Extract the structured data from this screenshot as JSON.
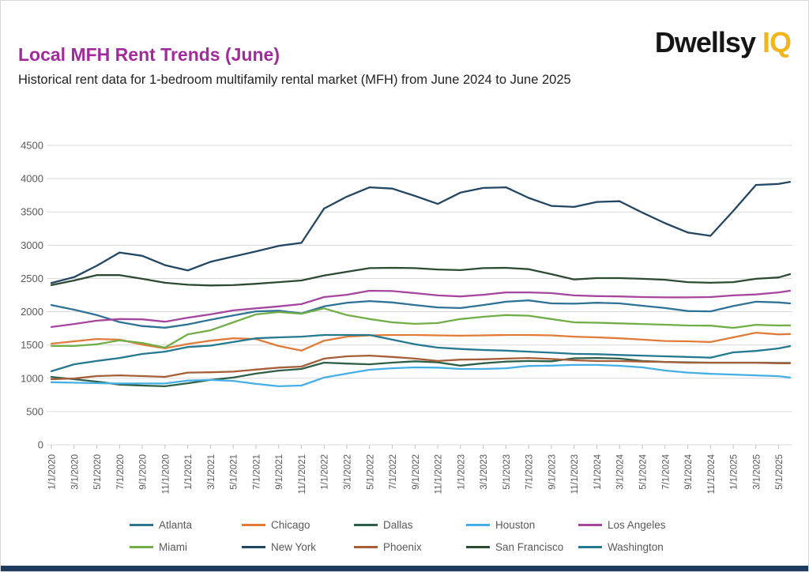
{
  "header": {
    "title": "Local MFH Rent Trends (June)",
    "title_color": "#A12B9B",
    "subtitle": "Historical rent data for 1-bedroom multifamily rental market (MFH) from June 2024 to June 2025",
    "logo": {
      "text_primary": "Dwellsy",
      "text_secondary": "IQ",
      "primary_color": "#161616",
      "secondary_color": "#F2B51D"
    }
  },
  "page": {
    "footer_bar_color": "#1E3A5E",
    "grid_color": "#D9D9D9",
    "axis_tick_color": "#BFBFBF",
    "axis_label_color": "#595959"
  },
  "chart_data": {
    "type": "line",
    "title": "Local MFH Rent Trends (June)",
    "xlabel": "",
    "ylabel": "",
    "ylim": [
      0,
      4500
    ],
    "y_ticks": [
      0,
      500,
      1000,
      1500,
      2000,
      2500,
      3000,
      3500,
      4000,
      4500
    ],
    "grid": true,
    "legend_position": "bottom",
    "x_tick_labels": [
      "1/1/2020",
      "3/1/2020",
      "5/1/2020",
      "7/1/2020",
      "9/1/2020",
      "11/1/2020",
      "1/1/2021",
      "3/1/2021",
      "5/1/2021",
      "7/1/2021",
      "9/1/2021",
      "11/1/2021",
      "1/1/2022",
      "3/1/2022",
      "5/1/2022",
      "7/1/2022",
      "9/1/2022",
      "11/1/2022",
      "1/1/2023",
      "3/1/2023",
      "5/1/2023",
      "7/1/2023",
      "9/1/2023",
      "11/1/2023",
      "1/1/2024",
      "3/1/2024",
      "5/1/2024",
      "7/1/2024",
      "9/1/2024",
      "11/1/2024",
      "1/1/2025",
      "3/1/2025",
      "5/1/2025"
    ],
    "x_months": [
      0,
      2,
      4,
      6,
      8,
      10,
      12,
      14,
      16,
      18,
      20,
      22,
      24,
      26,
      28,
      30,
      32,
      34,
      36,
      38,
      40,
      42,
      44,
      46,
      48,
      50,
      52,
      54,
      56,
      58,
      60,
      62,
      64,
      65
    ],
    "x_months_note": "months since 1/2020; final unlabeled point is 6/1/2025",
    "series": [
      {
        "name": "Atlanta",
        "color": "#2E7295",
        "values": [
          2100,
          2030,
          1950,
          1845,
          1785,
          1760,
          1810,
          1880,
          1945,
          2005,
          2015,
          1975,
          2080,
          2135,
          2160,
          2140,
          2100,
          2065,
          2055,
          2100,
          2150,
          2170,
          2125,
          2120,
          2135,
          2125,
          2090,
          2055,
          2010,
          2005,
          2085,
          2150,
          2140,
          2125
        ]
      },
      {
        "name": "Chicago",
        "color": "#E07B39",
        "values": [
          1520,
          1555,
          1590,
          1580,
          1505,
          1450,
          1515,
          1565,
          1600,
          1590,
          1485,
          1415,
          1565,
          1625,
          1645,
          1650,
          1650,
          1645,
          1640,
          1645,
          1650,
          1650,
          1645,
          1625,
          1615,
          1600,
          1580,
          1560,
          1555,
          1545,
          1615,
          1685,
          1660,
          1665
        ]
      },
      {
        "name": "Dallas",
        "color": "#2E6049",
        "values": [
          1020,
          985,
          950,
          905,
          890,
          880,
          925,
          975,
          1010,
          1070,
          1115,
          1140,
          1235,
          1220,
          1210,
          1235,
          1255,
          1240,
          1190,
          1225,
          1250,
          1260,
          1255,
          1300,
          1305,
          1295,
          1260,
          1245,
          1240,
          1235,
          1235,
          1235,
          1230,
          1230
        ]
      },
      {
        "name": "Houston",
        "color": "#45AFE5",
        "values": [
          940,
          933,
          926,
          921,
          921,
          921,
          965,
          975,
          960,
          915,
          880,
          890,
          1010,
          1070,
          1128,
          1150,
          1163,
          1160,
          1140,
          1140,
          1150,
          1185,
          1190,
          1200,
          1200,
          1187,
          1163,
          1116,
          1085,
          1068,
          1056,
          1044,
          1032,
          1010
        ]
      },
      {
        "name": "Los Angeles",
        "color": "#A5469E",
        "values": [
          1770,
          1815,
          1865,
          1890,
          1885,
          1850,
          1910,
          1960,
          2020,
          2050,
          2080,
          2115,
          2220,
          2255,
          2315,
          2310,
          2280,
          2245,
          2230,
          2255,
          2290,
          2290,
          2280,
          2245,
          2235,
          2230,
          2220,
          2215,
          2215,
          2220,
          2245,
          2260,
          2290,
          2315
        ]
      },
      {
        "name": "Miami",
        "color": "#71AE48",
        "values": [
          1485,
          1485,
          1510,
          1570,
          1530,
          1460,
          1660,
          1720,
          1840,
          1960,
          1995,
          1970,
          2050,
          1950,
          1890,
          1840,
          1818,
          1830,
          1890,
          1923,
          1950,
          1940,
          1890,
          1840,
          1835,
          1825,
          1815,
          1805,
          1793,
          1790,
          1757,
          1804,
          1793,
          1795
        ]
      },
      {
        "name": "New York",
        "color": "#234663",
        "values": [
          2430,
          2520,
          2690,
          2890,
          2840,
          2700,
          2620,
          2750,
          2830,
          2905,
          2990,
          3035,
          3550,
          3730,
          3870,
          3850,
          3740,
          3620,
          3790,
          3860,
          3870,
          3710,
          3590,
          3575,
          3650,
          3660,
          3490,
          3330,
          3190,
          3140,
          3515,
          3905,
          3920,
          3950
        ]
      },
      {
        "name": "Phoenix",
        "color": "#A65E38",
        "values": [
          985,
          997,
          1033,
          1044,
          1033,
          1021,
          1085,
          1090,
          1100,
          1130,
          1160,
          1175,
          1295,
          1330,
          1340,
          1320,
          1295,
          1260,
          1280,
          1285,
          1295,
          1305,
          1290,
          1270,
          1258,
          1258,
          1250,
          1246,
          1234,
          1234,
          1234,
          1234,
          1225,
          1225
        ]
      },
      {
        "name": "San Francisco",
        "color": "#2D4A32",
        "values": [
          2400,
          2470,
          2550,
          2550,
          2495,
          2435,
          2405,
          2395,
          2400,
          2420,
          2445,
          2470,
          2545,
          2600,
          2655,
          2660,
          2655,
          2635,
          2625,
          2655,
          2660,
          2640,
          2565,
          2485,
          2505,
          2505,
          2495,
          2480,
          2445,
          2435,
          2445,
          2495,
          2515,
          2565
        ]
      },
      {
        "name": "Washington",
        "color": "#24788F",
        "values": [
          1105,
          1210,
          1260,
          1305,
          1365,
          1400,
          1470,
          1490,
          1545,
          1600,
          1615,
          1625,
          1650,
          1650,
          1650,
          1580,
          1510,
          1460,
          1440,
          1425,
          1415,
          1400,
          1385,
          1367,
          1362,
          1350,
          1340,
          1330,
          1320,
          1310,
          1389,
          1410,
          1448,
          1483
        ]
      }
    ]
  }
}
